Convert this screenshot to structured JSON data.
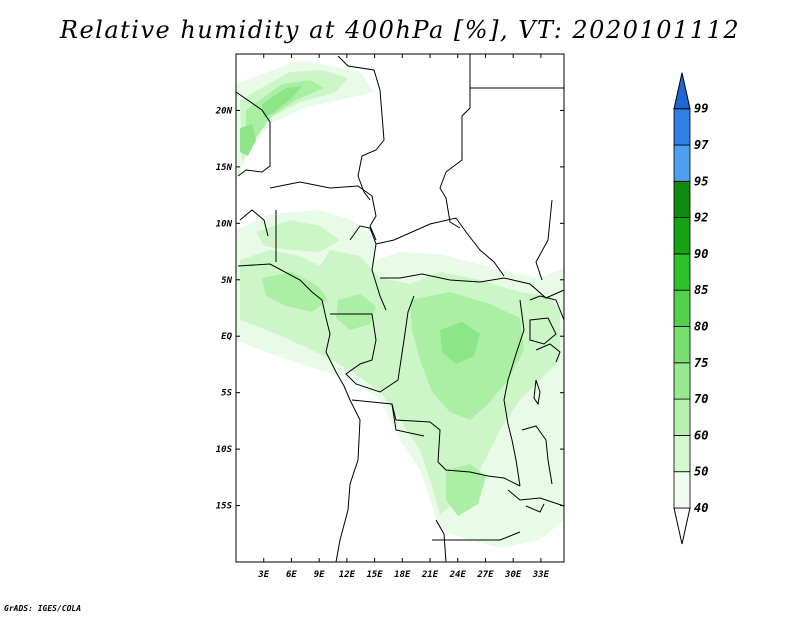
{
  "title": "Relative humidity at 400hPa [%], VT: 2020101112",
  "credit": "GrADS: IGES/COLA",
  "map": {
    "variable": "Relative humidity",
    "level": "400hPa",
    "valid_time": "2020101112",
    "units": "%",
    "lon_range_deg": [
      0,
      35.5
    ],
    "lat_range_deg": [
      -20,
      25
    ],
    "lat_ticks": [
      {
        "value": 20,
        "label": "20N"
      },
      {
        "value": 15,
        "label": "15N"
      },
      {
        "value": 10,
        "label": "10N"
      },
      {
        "value": 5,
        "label": "5N"
      },
      {
        "value": 0,
        "label": "EQ"
      },
      {
        "value": -5,
        "label": "5S"
      },
      {
        "value": -10,
        "label": "10S"
      },
      {
        "value": -15,
        "label": "15S"
      }
    ],
    "lon_ticks": [
      {
        "value": 3,
        "label": "3E"
      },
      {
        "value": 6,
        "label": "6E"
      },
      {
        "value": 9,
        "label": "9E"
      },
      {
        "value": 12,
        "label": "12E"
      },
      {
        "value": 15,
        "label": "15E"
      },
      {
        "value": 18,
        "label": "18E"
      },
      {
        "value": 21,
        "label": "21E"
      },
      {
        "value": 24,
        "label": "24E"
      },
      {
        "value": 27,
        "label": "27E"
      },
      {
        "value": 30,
        "label": "30E"
      },
      {
        "value": 33,
        "label": "33E"
      }
    ]
  },
  "colorbar": {
    "levels": [
      "40",
      "50",
      "60",
      "70",
      "75",
      "80",
      "85",
      "90",
      "92",
      "95",
      "97",
      "99"
    ],
    "colors": [
      "#f0fcf0",
      "#d3f7cf",
      "#b6f1b0",
      "#96e98e",
      "#76df6f",
      "#52d24c",
      "#2fc12d",
      "#15a314",
      "#0e8a0e",
      "#4e9ef2",
      "#2f7fe4",
      "#1c5fc8"
    ],
    "low_cap_color": "#ffffff",
    "high_cap_color": "#1f67d6"
  },
  "humidity_fields": [
    {
      "level": "40",
      "color": "#e6fae4"
    },
    {
      "level": "50",
      "color": "#c8f5c2"
    },
    {
      "level": "60",
      "color": "#a6eea0"
    },
    {
      "level": "70",
      "color": "#88e482"
    }
  ]
}
